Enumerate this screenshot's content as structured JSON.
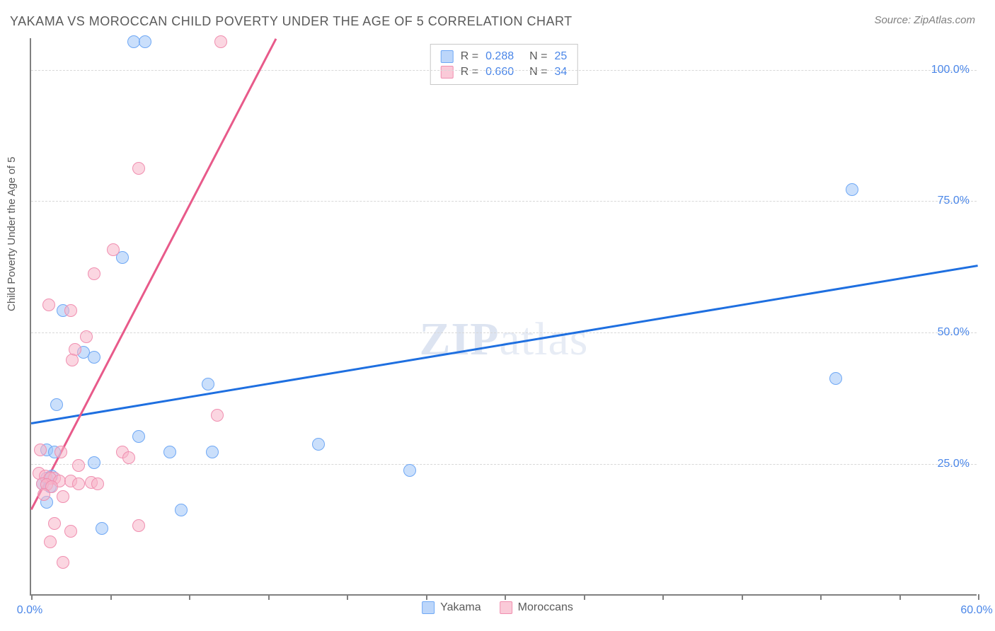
{
  "title": "YAKAMA VS MOROCCAN CHILD POVERTY UNDER THE AGE OF 5 CORRELATION CHART",
  "source_label": "Source: ZipAtlas.com",
  "ylabel": "Child Poverty Under the Age of 5",
  "watermark_bold": "ZIP",
  "watermark_light": "atlas",
  "chart": {
    "type": "scatter",
    "xlim": [
      0,
      60
    ],
    "ylim": [
      0,
      106
    ],
    "x_ticks": [
      0,
      5,
      10,
      15,
      20,
      25,
      30,
      35,
      40,
      45,
      50,
      55,
      60
    ],
    "x_tick_labels": {
      "0": "0.0%",
      "60": "60.0%"
    },
    "y_gridlines": [
      25,
      50,
      75,
      100
    ],
    "y_tick_labels": {
      "25": "25.0%",
      "50": "50.0%",
      "75": "75.0%",
      "100": "100.0%"
    },
    "background_color": "#ffffff",
    "grid_color": "#d8d8d8",
    "axis_color": "#808080",
    "tick_label_color": "#4a86e8",
    "point_radius": 9,
    "series": [
      {
        "name": "Yakama",
        "fill_color": "rgba(159,197,248,0.55)",
        "stroke_color": "#6fa8f5",
        "trend_color": "#1e6fe0",
        "R": "0.288",
        "N": "25",
        "trend": {
          "x1": 0,
          "y1": 33,
          "x2": 60,
          "y2": 63
        },
        "points": [
          [
            6.5,
            105
          ],
          [
            7.2,
            105
          ],
          [
            52,
            77
          ],
          [
            5.8,
            64
          ],
          [
            2.0,
            54
          ],
          [
            3.3,
            46
          ],
          [
            4.0,
            45
          ],
          [
            51,
            41
          ],
          [
            11.2,
            40
          ],
          [
            1.6,
            36
          ],
          [
            6.8,
            30
          ],
          [
            18.2,
            28.5
          ],
          [
            1.0,
            27.5
          ],
          [
            1.5,
            27
          ],
          [
            8.8,
            27
          ],
          [
            11.5,
            27
          ],
          [
            4.0,
            25
          ],
          [
            24,
            23.5
          ],
          [
            1.0,
            22
          ],
          [
            1.3,
            22.5
          ],
          [
            0.7,
            21
          ],
          [
            1.2,
            20.5
          ],
          [
            1.0,
            17.5
          ],
          [
            9.5,
            16
          ],
          [
            4.5,
            12.5
          ]
        ]
      },
      {
        "name": "Moroccans",
        "fill_color": "rgba(248,180,200,0.55)",
        "stroke_color": "#f08fb0",
        "R": "0.660",
        "N": "34",
        "trend": {
          "x1": 0,
          "y1": 16.5,
          "x2": 15.5,
          "y2": 106
        },
        "points": [
          [
            12,
            105
          ],
          [
            6.8,
            81
          ],
          [
            5.2,
            65.5
          ],
          [
            4.0,
            61
          ],
          [
            1.1,
            55
          ],
          [
            2.5,
            54
          ],
          [
            3.5,
            49
          ],
          [
            2.8,
            46.5
          ],
          [
            2.6,
            44.5
          ],
          [
            11.8,
            34
          ],
          [
            0.6,
            27.5
          ],
          [
            1.9,
            27
          ],
          [
            5.8,
            27
          ],
          [
            6.2,
            26
          ],
          [
            3.0,
            24.5
          ],
          [
            0.5,
            23
          ],
          [
            0.9,
            22.5
          ],
          [
            1.5,
            22
          ],
          [
            1.2,
            22
          ],
          [
            1.8,
            21.5
          ],
          [
            0.7,
            21
          ],
          [
            1.0,
            20.8
          ],
          [
            1.3,
            20.5
          ],
          [
            2.5,
            21.5
          ],
          [
            3.0,
            21
          ],
          [
            3.8,
            21.2
          ],
          [
            4.2,
            21
          ],
          [
            0.8,
            19
          ],
          [
            2.0,
            18.5
          ],
          [
            1.5,
            13.5
          ],
          [
            2.5,
            12
          ],
          [
            6.8,
            13
          ],
          [
            1.2,
            10
          ],
          [
            2.0,
            6
          ]
        ]
      }
    ]
  },
  "legend_corr": {
    "r_label": "R  =",
    "n_label": "N  ="
  },
  "legend_bottom": {
    "series1": "Yakama",
    "series2": "Moroccans"
  }
}
